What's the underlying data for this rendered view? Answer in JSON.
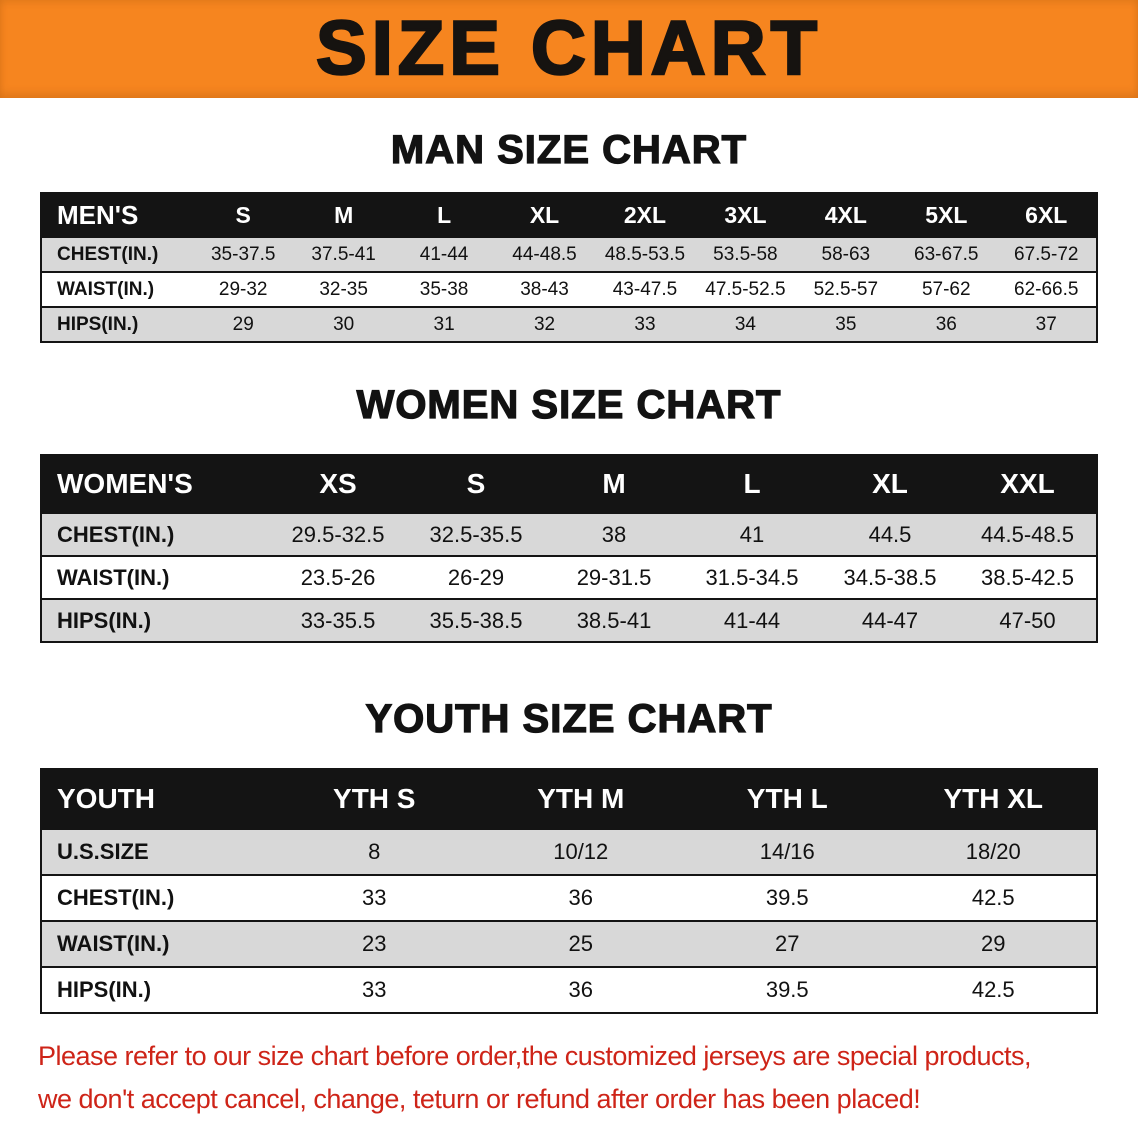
{
  "banner": {
    "title": "SIZE CHART"
  },
  "man": {
    "heading": "MAN SIZE CHART",
    "table": {
      "header": [
        "MEN'S",
        "S",
        "M",
        "L",
        "XL",
        "2XL",
        "3XL",
        "4XL",
        "5XL",
        "6XL"
      ],
      "rows": [
        [
          "CHEST(IN.)",
          "35-37.5",
          "37.5-41",
          "41-44",
          "44-48.5",
          "48.5-53.5",
          "53.5-58",
          "58-63",
          "63-67.5",
          "67.5-72"
        ],
        [
          "WAIST(IN.)",
          "29-32",
          "32-35",
          "35-38",
          "38-43",
          "43-47.5",
          "47.5-52.5",
          "52.5-57",
          "57-62",
          "62-66.5"
        ],
        [
          "HIPS(IN.)",
          "29",
          "30",
          "31",
          "32",
          "33",
          "34",
          "35",
          "36",
          "37"
        ]
      ]
    }
  },
  "women": {
    "heading": "WOMEN SIZE CHART",
    "table": {
      "header": [
        "WOMEN'S",
        "XS",
        "S",
        "M",
        "L",
        "XL",
        "XXL"
      ],
      "rows": [
        [
          "CHEST(IN.)",
          "29.5-32.5",
          "32.5-35.5",
          "38",
          "41",
          "44.5",
          "44.5-48.5"
        ],
        [
          "WAIST(IN.)",
          "23.5-26",
          "26-29",
          "29-31.5",
          "31.5-34.5",
          "34.5-38.5",
          "38.5-42.5"
        ],
        [
          "HIPS(IN.)",
          "33-35.5",
          "35.5-38.5",
          "38.5-41",
          "41-44",
          "44-47",
          "47-50"
        ]
      ]
    }
  },
  "youth": {
    "heading": "YOUTH SIZE CHART",
    "table": {
      "header": [
        "YOUTH",
        "YTH S",
        "YTH M",
        "YTH L",
        "YTH XL"
      ],
      "rows": [
        [
          "U.S.SIZE",
          "8",
          "10/12",
          "14/16",
          "18/20"
        ],
        [
          "CHEST(IN.)",
          "33",
          "36",
          "39.5",
          "42.5"
        ],
        [
          "WAIST(IN.)",
          "23",
          "25",
          "27",
          "29"
        ],
        [
          "HIPS(IN.)",
          "33",
          "36",
          "39.5",
          "42.5"
        ]
      ]
    }
  },
  "footer": {
    "line1": "Please refer to our size chart before order,the customized jerseys are special products,",
    "line2": "we don't accept cancel, change, teturn or refund after order has been placed!"
  },
  "colors": {
    "banner_bg": "#f6851f",
    "table_header_bg": "#141414",
    "row_alt_gray": "#d8d8d8",
    "notice_red": "#ce2418"
  }
}
